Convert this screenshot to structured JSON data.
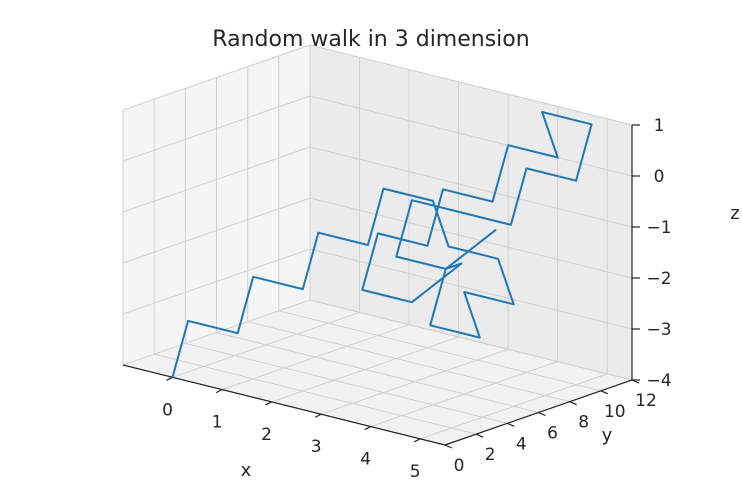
{
  "chart_data": {
    "type": "line",
    "title": "Random walk in 3 dimension",
    "xlabel": "x",
    "ylabel": "y",
    "zlabel": "z",
    "x_ticks": [
      "0",
      "1",
      "2",
      "3",
      "4",
      "5"
    ],
    "y_ticks": [
      "0",
      "2",
      "4",
      "6",
      "8",
      "10",
      "12"
    ],
    "z_ticks": [
      "1",
      "0",
      "−1",
      "−2",
      "−3",
      "−4"
    ],
    "x_range": [
      -1,
      5.5
    ],
    "y_range": [
      0,
      12
    ],
    "z_range": [
      -4,
      1
    ],
    "grid": true,
    "series_color": "#1f77b4",
    "series": [
      {
        "x": [
          0,
          0,
          1,
          1,
          2,
          2,
          3,
          3,
          4,
          4,
          5,
          5,
          4,
          4,
          3,
          3,
          2,
          2,
          3,
          4,
          4,
          5,
          5,
          4,
          4,
          3,
          3,
          2,
          2,
          1,
          1,
          2,
          3,
          3,
          4
        ],
        "y": [
          0,
          1,
          1,
          2,
          2,
          3,
          3,
          4,
          4,
          5,
          5,
          6,
          6,
          7,
          7,
          8,
          8,
          9,
          9,
          9,
          10,
          10,
          11,
          11,
          12,
          12,
          11,
          11,
          10,
          10,
          9,
          9,
          9,
          8,
          8
        ],
        "z": [
          -4,
          -3,
          -3,
          -2,
          -2,
          -1,
          -1,
          0,
          0,
          -1,
          -1,
          -2,
          -2,
          -3,
          -3,
          -2,
          -2,
          -1,
          -1,
          -1,
          0,
          0,
          1,
          1,
          0,
          0,
          -1,
          -1,
          -2,
          -2,
          -3,
          -3,
          -2,
          -2,
          -1
        ]
      }
    ]
  }
}
